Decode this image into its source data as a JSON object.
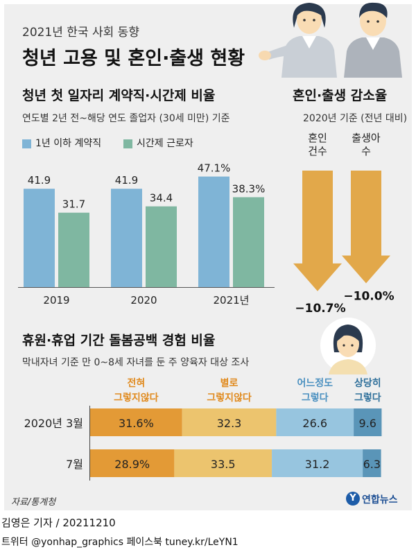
{
  "header": {
    "subtitle": "2021년 한국 사회 동향",
    "title": "청년 고용 및 혼인·출생 현황"
  },
  "colors": {
    "panel": "#efefef",
    "blue": "#7fb4d6",
    "green": "#7fb7a1",
    "gold": "#e2a84a",
    "orange": "#e39a36",
    "yellow": "#ecc46e",
    "lightblue": "#97c5df",
    "steelblue": "#5a95b8"
  },
  "employment": {
    "title": "청년 첫 일자리 계약직·시간제 비율",
    "note": "연도별 2년 전~해당 연도 졸업자 (30세 미만) 기준",
    "legend": [
      "1년 이하 계약직",
      "시간제 근로자"
    ]
  },
  "decline": {
    "title": "혼인·출생 감소율",
    "note": "2020년 기준 (전년 대비)"
  },
  "care": {
    "title": "휴원·휴업 기간 돌봄공백 경험 비율",
    "note": "막내자녀 기준 만 0~8세 자녀를 둔 주 양육자 대상 조사"
  },
  "footer": {
    "source": "자료/통계청",
    "brand": "연합뉴스",
    "reporter": "김영은 기자 / 20211210",
    "social": "트위터 @yonhap_graphics  페이스북 tuney.kr/LeYN1"
  },
  "chart_data": [
    {
      "type": "bar",
      "categories": [
        "2019",
        "2020",
        "2021년"
      ],
      "series": [
        {
          "name": "1년 이하 계약직",
          "values": [
            41.9,
            41.9,
            47.1
          ],
          "labels": [
            "41.9",
            "41.9",
            "47.1%"
          ]
        },
        {
          "name": "시간제 근로자",
          "values": [
            31.7,
            34.4,
            38.3
          ],
          "labels": [
            "31.7",
            "34.4",
            "38.3%"
          ]
        }
      ],
      "ylim": [
        0,
        52
      ],
      "grid": false
    },
    {
      "type": "bar",
      "categories": [
        "혼인\n건수",
        "출생아\n수"
      ],
      "values": [
        -10.7,
        -10.0
      ],
      "labels": [
        "−10.7%",
        "−10.0%"
      ]
    },
    {
      "type": "bar",
      "stacked": true,
      "orientation": "horizontal",
      "categories": [
        "2020년 3월",
        "7월"
      ],
      "series": [
        {
          "name": "전혀\n그렇지않다",
          "values": [
            31.6,
            28.9
          ],
          "labels": [
            "31.6%",
            "28.9%"
          ]
        },
        {
          "name": "별로\n그렇지않다",
          "values": [
            32.3,
            33.5
          ],
          "labels": [
            "32.3",
            "33.5"
          ]
        },
        {
          "name": "어느정도\n그렇다",
          "values": [
            26.6,
            31.2
          ],
          "labels": [
            "26.6",
            "31.2"
          ]
        },
        {
          "name": "상당히\n그렇다",
          "values": [
            9.6,
            6.3
          ],
          "labels": [
            "9.6",
            "6.3"
          ]
        }
      ]
    }
  ]
}
